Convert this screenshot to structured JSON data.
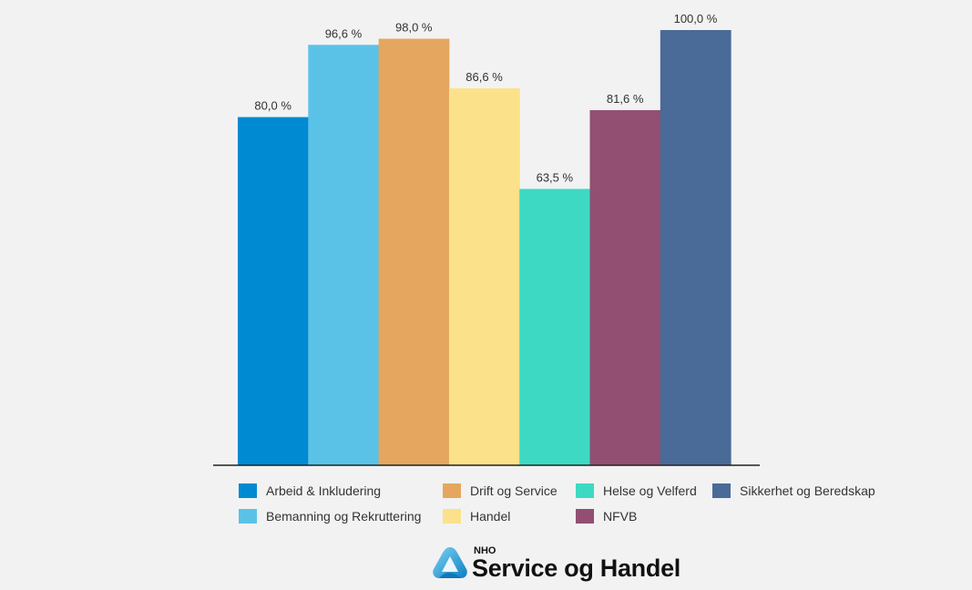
{
  "chart_data": {
    "type": "bar",
    "categories": [
      "Arbeid & Inkludering",
      "Bemanning og Rekruttering",
      "Drift og Service",
      "Handel",
      "Helse og Velferd",
      "NFVB",
      "Sikkerhet og Beredskap"
    ],
    "values": [
      80.0,
      96.6,
      98.0,
      86.6,
      63.5,
      81.6,
      100.0
    ],
    "value_labels": [
      "80,0 %",
      "96,6 %",
      "98,0 %",
      "86,6 %",
      "63,5 %",
      "81,6 %",
      "100,0 %"
    ],
    "colors": [
      "#008ad1",
      "#5bc2e7",
      "#e5a65f",
      "#fbe28a",
      "#3ed9c3",
      "#924f71",
      "#4a6a98"
    ],
    "ylim": [
      0,
      100
    ],
    "grid": false,
    "legend_position": "bottom",
    "title": "",
    "xlabel": "",
    "ylabel": ""
  },
  "legend": [
    {
      "label": "Arbeid & Inkludering",
      "color": "#008ad1"
    },
    {
      "label": "Drift og Service",
      "color": "#e5a65f"
    },
    {
      "label": "Helse og Velferd",
      "color": "#3ed9c3"
    },
    {
      "label": "Sikkerhet og Beredskap",
      "color": "#4a6a98"
    },
    {
      "label": "Bemanning og Rekruttering",
      "color": "#5bc2e7"
    },
    {
      "label": "Handel",
      "color": "#fbe28a"
    },
    {
      "label": "NFVB",
      "color": "#924f71"
    }
  ],
  "logo": {
    "small_text": "NHO",
    "big_text": "Service og Handel",
    "icon": "nho-logo-icon"
  }
}
